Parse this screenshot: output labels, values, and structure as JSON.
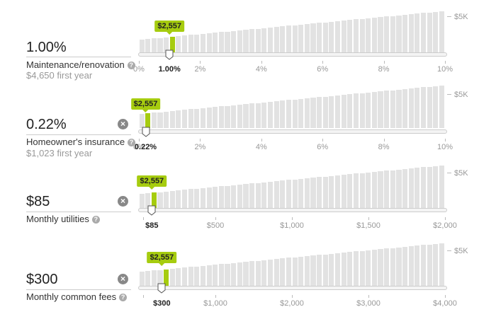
{
  "colors": {
    "accent": "#a6cc0f",
    "bar": "#e2e2e2"
  },
  "rows": [
    {
      "value": "1.00%",
      "label": "Maintenance/renovation",
      "sub": "$4,650 first year",
      "has_clear": false,
      "tooltip": "$2,557",
      "selected_label": "1.00%",
      "selected_fraction": 0.1,
      "ymax": "$5K",
      "axis": [
        "0%",
        "2%",
        "4%",
        "6%",
        "8%",
        "10%"
      ]
    },
    {
      "value": "0.22%",
      "label": "Homeowner's insurance",
      "sub": "$1,023 first year",
      "has_clear": true,
      "tooltip": "$2,557",
      "selected_label": "0.22%",
      "selected_fraction": 0.022,
      "ymax": "$5K",
      "axis": [
        "0%",
        "2%",
        "4%",
        "6%",
        "8%",
        "10%"
      ]
    },
    {
      "value": "$85",
      "label": "Monthly utilities",
      "sub": "",
      "has_clear": true,
      "tooltip": "$2,557",
      "selected_label": "$85",
      "selected_fraction": 0.0425,
      "ymax": "$5K",
      "axis": [
        "$500",
        "$1,000",
        "$1,500",
        "$2,000"
      ]
    },
    {
      "value": "$300",
      "label": "Monthly common fees",
      "sub": "",
      "has_clear": true,
      "tooltip": "$2,557",
      "selected_label": "$300",
      "selected_fraction": 0.075,
      "ymax": "$5K",
      "axis": [
        "$1,000",
        "$2,000",
        "$3,000",
        "$4,000"
      ]
    }
  ],
  "icons": {
    "clear": "clear-x-icon",
    "help": "help-question-icon",
    "handle": "slider-handle-icon"
  }
}
